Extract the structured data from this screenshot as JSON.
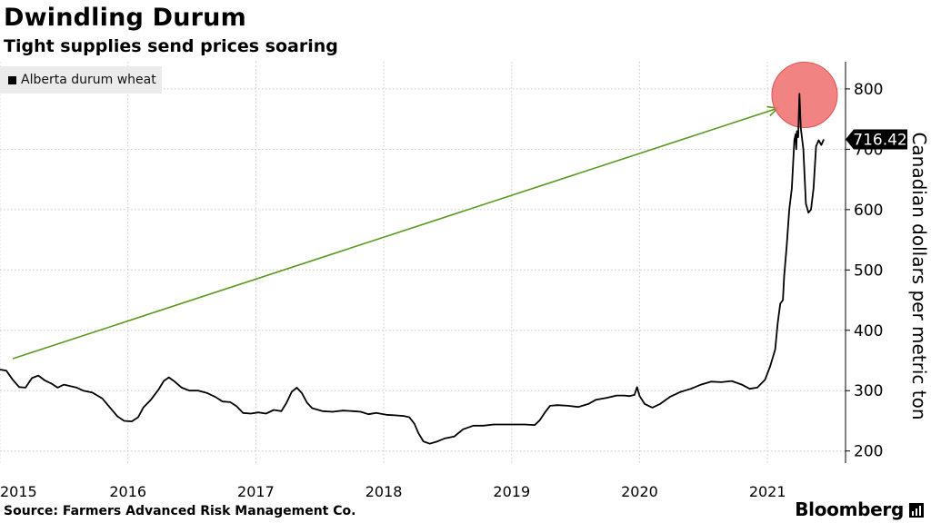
{
  "header": {
    "title": "Dwindling Durum",
    "subtitle": "Tight supplies send prices soaring"
  },
  "legend": {
    "label": "Alberta durum wheat"
  },
  "footer": {
    "source": "Source: Farmers Advanced Risk Management Co.",
    "brand": "Bloomberg"
  },
  "chart_data": {
    "type": "line",
    "title": "Dwindling Durum",
    "subtitle": "Tight supplies send prices soaring",
    "ylabel": "Canadian dollars per metric ton",
    "xlabel": "",
    "ylim": [
      180,
      845
    ],
    "xlim": [
      2015.0,
      2021.61
    ],
    "yticks": [
      200,
      300,
      400,
      500,
      600,
      700,
      800
    ],
    "xticks": [
      "2015",
      "2016",
      "2017",
      "2018",
      "2019",
      "2020",
      "2021"
    ],
    "grid": true,
    "legend_position": "top-left",
    "last_value_label": "716.42",
    "colors": {
      "line": "#000000",
      "arrow": "#5a9a1f",
      "highlight": "#ef7575"
    },
    "annotations": [
      {
        "type": "arrow",
        "from": [
          2015.1,
          353
        ],
        "to": [
          2021.08,
          768
        ]
      },
      {
        "type": "circle",
        "center": [
          2021.29,
          790
        ],
        "note": "peak highlight"
      }
    ],
    "series": [
      {
        "name": "Alberta durum wheat",
        "points": [
          [
            2015.0,
            335
          ],
          [
            2015.05,
            333
          ],
          [
            2015.1,
            318
          ],
          [
            2015.15,
            306
          ],
          [
            2015.2,
            305
          ],
          [
            2015.25,
            321
          ],
          [
            2015.3,
            325
          ],
          [
            2015.35,
            317
          ],
          [
            2015.4,
            312
          ],
          [
            2015.45,
            305
          ],
          [
            2015.5,
            310
          ],
          [
            2015.6,
            305
          ],
          [
            2015.65,
            300
          ],
          [
            2015.72,
            297
          ],
          [
            2015.8,
            287
          ],
          [
            2015.86,
            272
          ],
          [
            2015.92,
            257
          ],
          [
            2015.97,
            250
          ],
          [
            2016.03,
            249
          ],
          [
            2016.08,
            256
          ],
          [
            2016.12,
            272
          ],
          [
            2016.18,
            285
          ],
          [
            2016.24,
            302
          ],
          [
            2016.28,
            316
          ],
          [
            2016.32,
            322
          ],
          [
            2016.36,
            316
          ],
          [
            2016.42,
            305
          ],
          [
            2016.48,
            300
          ],
          [
            2016.55,
            300
          ],
          [
            2016.62,
            296
          ],
          [
            2016.68,
            290
          ],
          [
            2016.74,
            282
          ],
          [
            2016.8,
            281
          ],
          [
            2016.85,
            274
          ],
          [
            2016.9,
            263
          ],
          [
            2016.96,
            262
          ],
          [
            2017.02,
            264
          ],
          [
            2017.08,
            262
          ],
          [
            2017.14,
            268
          ],
          [
            2017.2,
            266
          ],
          [
            2017.24,
            280
          ],
          [
            2017.28,
            298
          ],
          [
            2017.32,
            305
          ],
          [
            2017.36,
            296
          ],
          [
            2017.4,
            280
          ],
          [
            2017.44,
            271
          ],
          [
            2017.52,
            266
          ],
          [
            2017.6,
            265
          ],
          [
            2017.68,
            267
          ],
          [
            2017.76,
            266
          ],
          [
            2017.82,
            265
          ],
          [
            2017.88,
            261
          ],
          [
            2017.94,
            263
          ],
          [
            2018.02,
            260
          ],
          [
            2018.1,
            259
          ],
          [
            2018.16,
            258
          ],
          [
            2018.2,
            256
          ],
          [
            2018.24,
            245
          ],
          [
            2018.27,
            230
          ],
          [
            2018.31,
            216
          ],
          [
            2018.36,
            212
          ],
          [
            2018.42,
            216
          ],
          [
            2018.48,
            221
          ],
          [
            2018.55,
            224
          ],
          [
            2018.62,
            236
          ],
          [
            2018.7,
            242
          ],
          [
            2018.78,
            242
          ],
          [
            2018.86,
            244
          ],
          [
            2018.94,
            244
          ],
          [
            2019.02,
            244
          ],
          [
            2019.1,
            244
          ],
          [
            2019.18,
            243
          ],
          [
            2019.22,
            251
          ],
          [
            2019.26,
            264
          ],
          [
            2019.3,
            275
          ],
          [
            2019.36,
            276
          ],
          [
            2019.44,
            275
          ],
          [
            2019.52,
            273
          ],
          [
            2019.6,
            278
          ],
          [
            2019.66,
            285
          ],
          [
            2019.74,
            288
          ],
          [
            2019.82,
            292
          ],
          [
            2019.88,
            292
          ],
          [
            2019.92,
            291
          ],
          [
            2019.96,
            293
          ],
          [
            2019.98,
            306
          ],
          [
            2020.0,
            291
          ],
          [
            2020.04,
            278
          ],
          [
            2020.1,
            272
          ],
          [
            2020.16,
            278
          ],
          [
            2020.24,
            290
          ],
          [
            2020.32,
            298
          ],
          [
            2020.4,
            303
          ],
          [
            2020.48,
            310
          ],
          [
            2020.56,
            315
          ],
          [
            2020.64,
            314
          ],
          [
            2020.72,
            316
          ],
          [
            2020.8,
            310
          ],
          [
            2020.86,
            303
          ],
          [
            2020.92,
            305
          ],
          [
            2020.98,
            318
          ],
          [
            2021.02,
            340
          ],
          [
            2021.06,
            368
          ],
          [
            2021.08,
            412
          ],
          [
            2021.1,
            444
          ],
          [
            2021.12,
            450
          ],
          [
            2021.13,
            490
          ],
          [
            2021.15,
            540
          ],
          [
            2021.17,
            600
          ],
          [
            2021.19,
            635
          ],
          [
            2021.21,
            715
          ],
          [
            2021.22,
            725
          ],
          [
            2021.225,
            700
          ],
          [
            2021.23,
            730
          ],
          [
            2021.24,
            720
          ],
          [
            2021.25,
            792
          ],
          [
            2021.26,
            735
          ],
          [
            2021.28,
            700
          ],
          [
            2021.3,
            610
          ],
          [
            2021.32,
            595
          ],
          [
            2021.34,
            600
          ],
          [
            2021.36,
            635
          ],
          [
            2021.38,
            705
          ],
          [
            2021.4,
            715
          ],
          [
            2021.42,
            707
          ],
          [
            2021.44,
            716.42
          ]
        ]
      }
    ]
  }
}
